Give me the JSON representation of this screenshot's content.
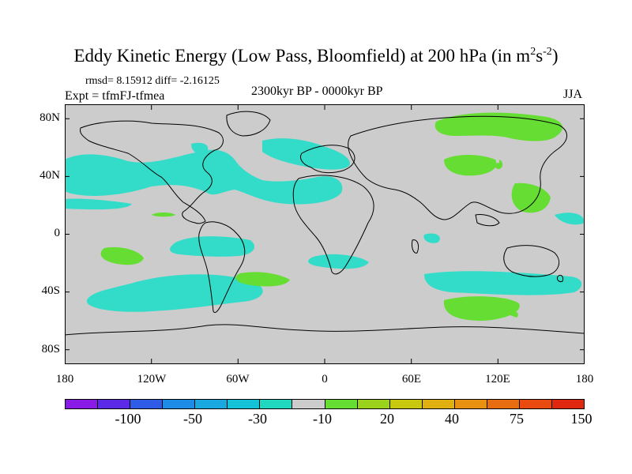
{
  "title": {
    "main": "Eddy Kinetic Energy (Low Pass, Bloomfield) at 200 hPa (in m",
    "sup1": "2",
    "mid": "s",
    "sup2": "-2",
    "end": ")"
  },
  "stats": "rmsd= 8.15912 diff= -2.16125",
  "expt": "Expt = tfmFJ-tfmea",
  "period": "2300kyr BP - 0000kyr BP",
  "season": "JJA",
  "lat_labels": [
    "80N",
    "40N",
    "0",
    "40S",
    "80S"
  ],
  "lon_labels": [
    "180",
    "120W",
    "60W",
    "0",
    "60E",
    "120E",
    "180"
  ],
  "colorbar": {
    "colors": [
      "#8a1ae6",
      "#5a2ae6",
      "#2f5ce6",
      "#1d8ce6",
      "#1aa8e0",
      "#14c3d8",
      "#20d8c0",
      "#cccccc",
      "#66dd33",
      "#9ad21c",
      "#c8c80e",
      "#e0b010",
      "#e89010",
      "#e86c10",
      "#e84a10",
      "#e02810"
    ],
    "labels": [
      "-100",
      "-50",
      "-30",
      "-10",
      "20",
      "40",
      "75",
      "150"
    ]
  },
  "colors": {
    "land_bg": "#cccccc",
    "neg_fill": "#33dcc8",
    "pos_fill": "#66dd33",
    "coast": "#000000"
  }
}
